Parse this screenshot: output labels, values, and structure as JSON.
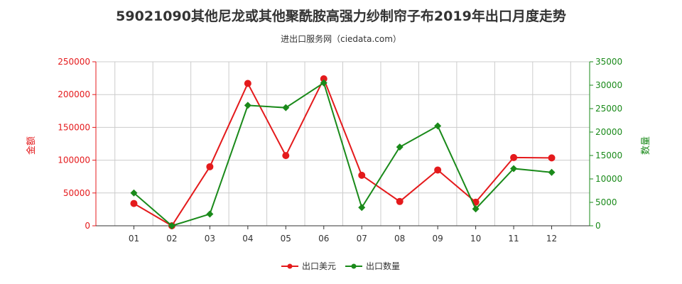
{
  "colors": {
    "series1": "#e41a1c",
    "series2": "#1a8a1a",
    "grid": "#cccccc",
    "axis_left": "#e41a1c",
    "axis_right": "#1a8a1a"
  },
  "chart_data": {
    "type": "line",
    "title": "59021090其他尼龙或其他聚酰胺高强力纱制帘子布2019年出口月度走势",
    "subtitle": "进出口服务网（ciedata.com）",
    "categories": [
      "01",
      "02",
      "03",
      "04",
      "05",
      "06",
      "07",
      "08",
      "09",
      "10",
      "11",
      "12"
    ],
    "y_left": {
      "label": "金额",
      "min": 0,
      "max": 250000,
      "ticks": [
        0,
        50000,
        100000,
        150000,
        200000,
        250000
      ]
    },
    "y_right": {
      "label": "数量",
      "min": 0,
      "max": 35000,
      "ticks": [
        0,
        5000,
        10000,
        15000,
        20000,
        25000,
        30000,
        35000
      ]
    },
    "series": [
      {
        "name": "出口美元",
        "axis": "left",
        "values": [
          34000,
          0,
          90000,
          217000,
          107000,
          224000,
          77000,
          37000,
          85000,
          36000,
          104000,
          103500
        ]
      },
      {
        "name": "出口数量",
        "axis": "right",
        "values": [
          7000,
          0,
          2500,
          25700,
          25200,
          30500,
          3900,
          16800,
          21300,
          3600,
          12200,
          11400
        ]
      }
    ],
    "grid": true,
    "legend_position": "bottom"
  }
}
